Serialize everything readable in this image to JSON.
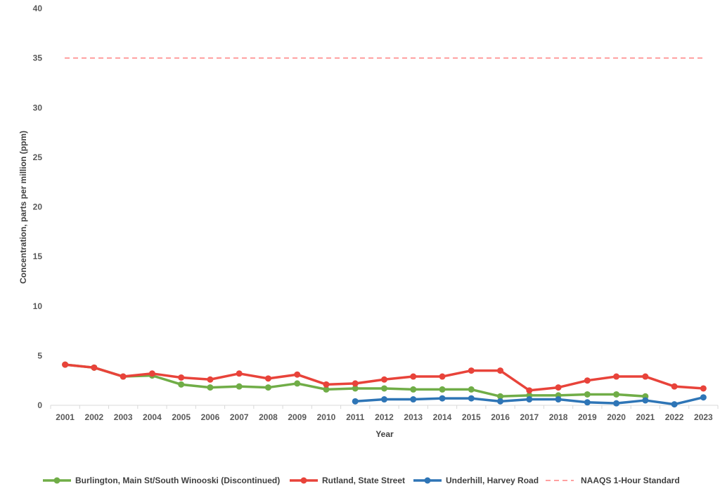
{
  "chart_data": {
    "type": "line",
    "title": "",
    "xlabel": "Year",
    "ylabel": "Concentration, parts per million (ppm)",
    "ylim": [
      0,
      40
    ],
    "yticks": [
      0,
      5,
      10,
      15,
      20,
      25,
      30,
      35,
      40
    ],
    "grid": false,
    "legend_position": "bottom",
    "categories": [
      "2001",
      "2002",
      "2003",
      "2004",
      "2005",
      "2006",
      "2007",
      "2008",
      "2009",
      "2010",
      "2011",
      "2012",
      "2013",
      "2014",
      "2015",
      "2016",
      "2017",
      "2018",
      "2019",
      "2020",
      "2021",
      "2022",
      "2023"
    ],
    "series": [
      {
        "name": "Burlington, Main St/South Winooski (Discontinued)",
        "color": "#70AD47",
        "dash": false,
        "values": [
          4.1,
          3.8,
          2.9,
          3.0,
          2.1,
          1.8,
          1.9,
          1.8,
          2.2,
          1.6,
          1.7,
          1.7,
          1.6,
          1.6,
          1.6,
          0.9,
          1.0,
          1.0,
          1.1,
          1.1,
          0.9,
          null,
          null
        ]
      },
      {
        "name": "Rutland, State Street",
        "color": "#E8433A",
        "dash": false,
        "values": [
          4.1,
          3.8,
          2.9,
          3.2,
          2.8,
          2.6,
          3.2,
          2.7,
          3.1,
          2.1,
          2.2,
          2.6,
          2.9,
          2.9,
          3.5,
          3.5,
          1.5,
          1.8,
          2.5,
          2.9,
          2.9,
          1.9,
          1.7
        ]
      },
      {
        "name": "Underhill, Harvey Road",
        "color": "#2E75B6",
        "dash": false,
        "values": [
          null,
          null,
          null,
          null,
          null,
          null,
          null,
          null,
          null,
          null,
          0.4,
          0.6,
          0.6,
          0.7,
          0.7,
          0.4,
          0.6,
          0.6,
          0.3,
          0.2,
          0.5,
          0.1,
          0.8
        ]
      },
      {
        "name": "NAAQS 1-Hour Standard",
        "color": "#FF8080",
        "dash": true,
        "values": [
          35,
          35,
          35,
          35,
          35,
          35,
          35,
          35,
          35,
          35,
          35,
          35,
          35,
          35,
          35,
          35,
          35,
          35,
          35,
          35,
          35,
          35,
          35
        ]
      }
    ]
  }
}
